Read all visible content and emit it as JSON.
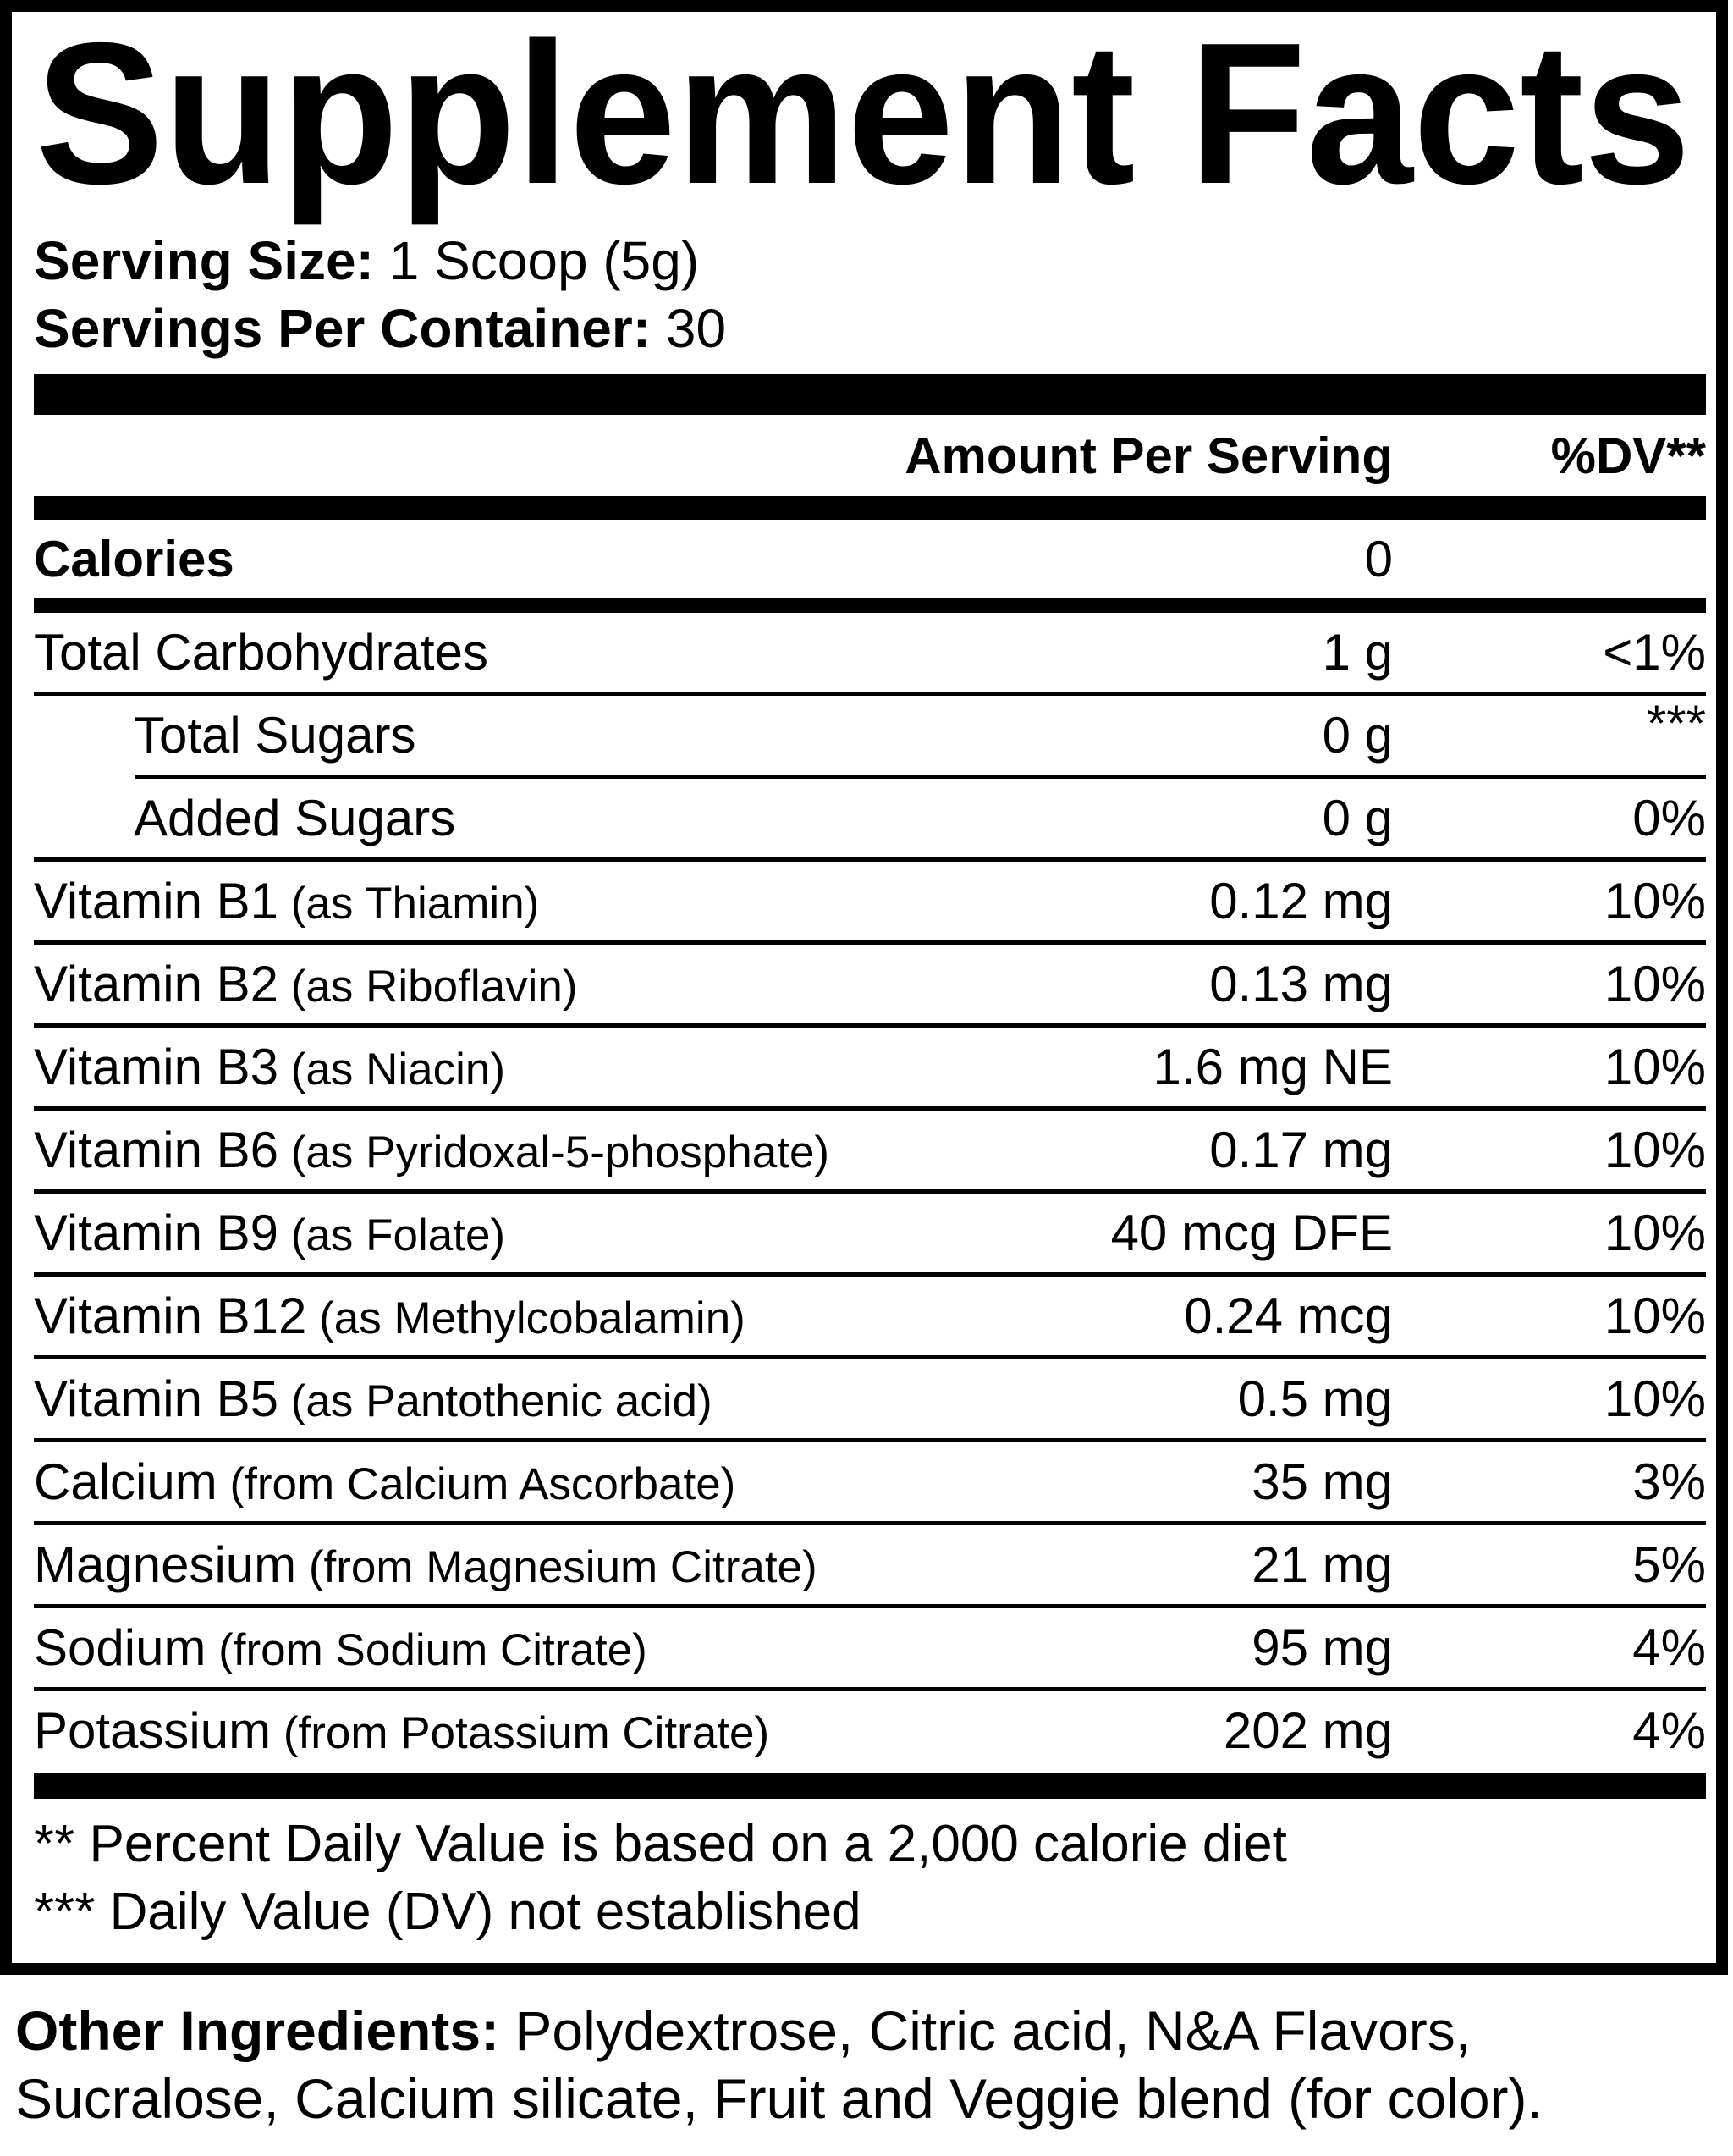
{
  "title": "Supplement Facts",
  "serving": {
    "size_label": "Serving Size:",
    "size_value": " 1 Scoop (5g)",
    "container_label": "Servings Per Container:",
    "container_value": " 30"
  },
  "header": {
    "amount": "Amount Per Serving",
    "dv": "%DV**"
  },
  "rows": [
    {
      "name": "Calories",
      "detail": "",
      "amount": "0",
      "dv": "",
      "bold": true,
      "sub": false,
      "sep": "medium"
    },
    {
      "name": "Total Carbohydrates",
      "detail": "",
      "amount": "1 g",
      "dv": "<1%",
      "bold": false,
      "sub": false,
      "sep": "thin"
    },
    {
      "name": "Total Sugars",
      "detail": "",
      "amount": "0 g",
      "dv": "***",
      "bold": false,
      "sub": true,
      "sep": "thin-indent"
    },
    {
      "name": "Added Sugars",
      "detail": "",
      "amount": "0 g",
      "dv": "0%",
      "bold": false,
      "sub": true,
      "sep": "thin"
    },
    {
      "name": "Vitamin B1",
      "detail": "(as Thiamin)",
      "amount": "0.12 mg",
      "dv": "10%",
      "bold": false,
      "sub": false,
      "sep": "thin"
    },
    {
      "name": "Vitamin B2",
      "detail": "(as Riboflavin)",
      "amount": "0.13 mg",
      "dv": "10%",
      "bold": false,
      "sub": false,
      "sep": "thin"
    },
    {
      "name": "Vitamin B3",
      "detail": "(as Niacin)",
      "amount": "1.6 mg NE",
      "dv": "10%",
      "bold": false,
      "sub": false,
      "sep": "thin"
    },
    {
      "name": "Vitamin B6",
      "detail": "(as Pyridoxal-5-phosphate)",
      "amount": "0.17 mg",
      "dv": "10%",
      "bold": false,
      "sub": false,
      "sep": "thin"
    },
    {
      "name": "Vitamin B9",
      "detail": "(as Folate)",
      "amount": "40 mcg DFE",
      "dv": "10%",
      "bold": false,
      "sub": false,
      "sep": "thin"
    },
    {
      "name": "Vitamin B12",
      "detail": "(as Methylcobalamin)",
      "amount": "0.24 mcg",
      "dv": "10%",
      "bold": false,
      "sub": false,
      "sep": "thin"
    },
    {
      "name": "Vitamin B5",
      "detail": "(as Pantothenic acid)",
      "amount": "0.5 mg",
      "dv": "10%",
      "bold": false,
      "sub": false,
      "sep": "thin"
    },
    {
      "name": "Calcium",
      "detail": "(from Calcium Ascorbate)",
      "amount": "35 mg",
      "dv": "3%",
      "bold": false,
      "sub": false,
      "sep": "thin"
    },
    {
      "name": "Magnesium",
      "detail": "(from Magnesium Citrate)",
      "amount": "21 mg",
      "dv": "5%",
      "bold": false,
      "sub": false,
      "sep": "thin"
    },
    {
      "name": "Sodium",
      "detail": "(from Sodium Citrate)",
      "amount": "95 mg",
      "dv": "4%",
      "bold": false,
      "sub": false,
      "sep": "thin"
    },
    {
      "name": "Potassium",
      "detail": "(from Potassium Citrate)",
      "amount": "202 mg",
      "dv": "4%",
      "bold": false,
      "sub": false,
      "sep": "thick"
    }
  ],
  "footnotes": {
    "line1": "** Percent Daily Value is based on a 2,000 calorie diet",
    "line2": "*** Daily Value (DV) not established"
  },
  "other_ingredients": {
    "label": "Other Ingredients:",
    "line1_rest": " Polydextrose, Citric acid, N&A Flavors,",
    "line2": "Sucralose, Calcium silicate, Fruit and Veggie blend (for color)."
  },
  "colors": {
    "ink": "#000000",
    "paper": "#ffffff"
  }
}
